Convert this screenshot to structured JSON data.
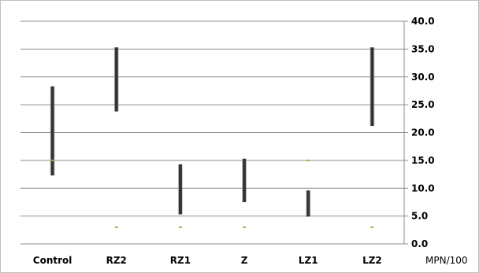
{
  "chart_data": {
    "type": "floating-range",
    "categories": [
      "Control",
      "RZ2",
      "RZ1",
      "Z",
      "LZ1",
      "LZ2"
    ],
    "ranges": [
      {
        "category": "Control",
        "low": 12.3,
        "high": 28.3
      },
      {
        "category": "RZ2",
        "low": 23.8,
        "high": 35.3
      },
      {
        "category": "RZ1",
        "low": 5.3,
        "high": 14.3
      },
      {
        "category": "Z",
        "low": 7.5,
        "high": 15.3
      },
      {
        "category": "LZ1",
        "low": 4.9,
        "high": 9.6
      },
      {
        "category": "LZ2",
        "low": 21.2,
        "high": 35.3
      }
    ],
    "markers": [
      {
        "category": "Control",
        "value": 15.0
      },
      {
        "category": "RZ2",
        "value": 3.0
      },
      {
        "category": "RZ1",
        "value": 3.0
      },
      {
        "category": "Z",
        "value": 3.0
      },
      {
        "category": "LZ1",
        "value": 15.0
      },
      {
        "category": "LZ2",
        "value": 3.0
      }
    ],
    "yaxis": {
      "position": "right",
      "min": 0,
      "max": 40,
      "step": 5,
      "tick_labels": [
        "0.0",
        "5.0",
        "10.0",
        "15.0",
        "20.0",
        "25.0",
        "30.0",
        "35.0",
        "40.0"
      ],
      "unit_label": "MPN/100"
    },
    "grid": true,
    "legend": "none",
    "colors": {
      "bar": "#333333",
      "bar_edge": "#9a9a9a",
      "marker": "#b5a33a",
      "grid": "#8c8c8c"
    }
  }
}
